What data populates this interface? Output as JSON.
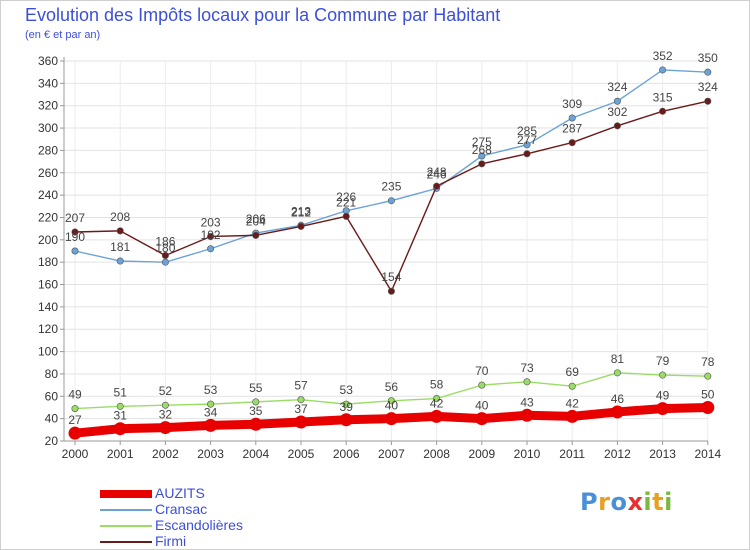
{
  "chart_data": {
    "type": "line",
    "title": "Evolution des Impôts locaux pour la Commune par Habitant",
    "subtitle": "(en € et par an)",
    "xlabel": "",
    "ylabel": "",
    "categories": [
      "2000",
      "2001",
      "2002",
      "2003",
      "2004",
      "2005",
      "2006",
      "2007",
      "2008",
      "2009",
      "2010",
      "2011",
      "2012",
      "2013",
      "2014"
    ],
    "ylim": [
      20,
      360
    ],
    "yticks": [
      20,
      40,
      60,
      80,
      100,
      120,
      140,
      160,
      180,
      200,
      220,
      240,
      260,
      280,
      300,
      320,
      340,
      360
    ],
    "grid": true,
    "legend_position": "bottom-left",
    "series": [
      {
        "name": "AUZITS",
        "color": "#e80000",
        "values": [
          27,
          31,
          32,
          34,
          35,
          37,
          39,
          40,
          42,
          40,
          43,
          42,
          46,
          49,
          50
        ]
      },
      {
        "name": "Cransac",
        "color": "#6ba3d6",
        "values": [
          190,
          181,
          180,
          192,
          206,
          213,
          226,
          235,
          246,
          275,
          285,
          309,
          324,
          352,
          350
        ]
      },
      {
        "name": "Escandolières",
        "color": "#99dd66",
        "values": [
          49,
          51,
          52,
          53,
          55,
          57,
          53,
          56,
          58,
          70,
          73,
          69,
          81,
          79,
          78
        ]
      },
      {
        "name": "Firmi",
        "color": "#6b1a1a",
        "values": [
          207,
          208,
          186,
          203,
          204,
          212,
          221,
          154,
          248,
          268,
          277,
          287,
          302,
          315,
          324
        ]
      }
    ]
  },
  "logo": {
    "letters": [
      "P",
      "r",
      "o",
      "x",
      "i",
      "t",
      "i"
    ],
    "colors": [
      "#4a90d9",
      "#e8a020",
      "#4a90d9",
      "#e83030",
      "#7ab840",
      "#e8a020",
      "#7ab840"
    ]
  }
}
